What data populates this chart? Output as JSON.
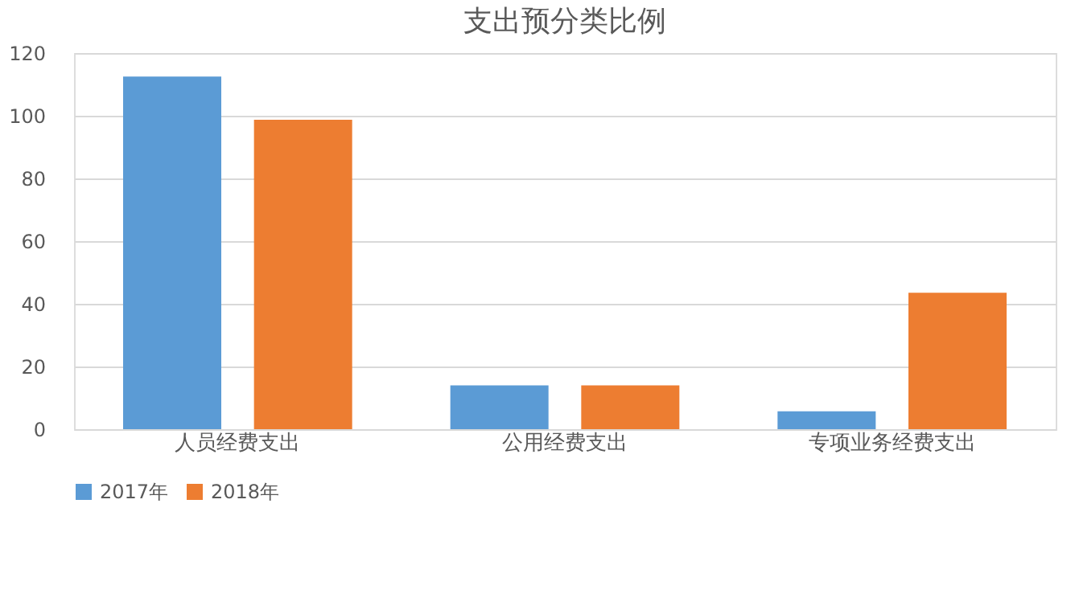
{
  "chart_data": {
    "type": "bar",
    "title": "支出预分类比例",
    "categories": [
      "人员经费支出",
      "公用经费支出",
      "专项业务经费支出"
    ],
    "series": [
      {
        "name": "2017年",
        "color": "#5b9bd5",
        "values": [
          112.5,
          14,
          5.7
        ]
      },
      {
        "name": "2018年",
        "color": "#ed7d31",
        "values": [
          98.7,
          14,
          43.5
        ]
      }
    ],
    "ylim": [
      0,
      120
    ],
    "yticks": [
      0,
      20,
      40,
      60,
      80,
      100,
      120
    ],
    "grid": "y",
    "legend": "bottom"
  }
}
